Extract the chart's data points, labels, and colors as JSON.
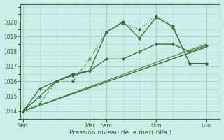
{
  "bg_color": "#cceee8",
  "grid_color": "#aad4cc",
  "line_color_main": "#2d6e2d",
  "xlabel": "Pression niveau de la mer( hPa )",
  "ylim": [
    1013.5,
    1021.2
  ],
  "yticks": [
    1014,
    1015,
    1016,
    1017,
    1018,
    1019,
    1020
  ],
  "xtick_labels": [
    "Ven",
    "Mar",
    "Sam",
    "Dim",
    "Lun"
  ],
  "xtick_positions": [
    0,
    12,
    15,
    24,
    33
  ],
  "xlim": [
    -0.5,
    35.5
  ],
  "vline_positions": [
    0,
    12,
    15,
    24,
    33
  ],
  "vline_color": "#3a6e3a",
  "series": [
    {
      "x": [
        0,
        3,
        6,
        9,
        12,
        15,
        18,
        21,
        24,
        27,
        30,
        33
      ],
      "y": [
        1014.0,
        1014.5,
        1016.0,
        1016.0,
        1017.5,
        1019.3,
        1019.9,
        1019.5,
        1020.4,
        1019.6,
        1017.2,
        1017.2
      ],
      "marker": "D",
      "markersize": 2.0,
      "linewidth": 0.9,
      "linestyle": ":",
      "color": "#2d6e2d"
    },
    {
      "x": [
        0,
        3,
        6,
        9,
        12,
        15,
        18,
        21,
        24,
        27,
        30,
        33
      ],
      "y": [
        1014.0,
        1015.0,
        1016.0,
        1016.4,
        1016.7,
        1019.3,
        1020.0,
        1018.9,
        1020.3,
        1019.7,
        1017.2,
        1017.2
      ],
      "marker": "*",
      "markersize": 3.5,
      "linewidth": 0.9,
      "linestyle": "-",
      "color": "#2d6e2d"
    },
    {
      "x": [
        0,
        3,
        6,
        9,
        12,
        15,
        18,
        21,
        24,
        27,
        30,
        33
      ],
      "y": [
        1014.0,
        1015.5,
        1016.0,
        1016.5,
        1016.7,
        1017.5,
        1017.5,
        1018.0,
        1018.5,
        1018.5,
        1018.0,
        1018.4
      ],
      "marker": "D",
      "markersize": 2.0,
      "linewidth": 0.9,
      "linestyle": "-",
      "color": "#2d6e2d"
    },
    {
      "x": [
        0,
        33
      ],
      "y": [
        1014.0,
        1018.3
      ],
      "marker": null,
      "markersize": 0,
      "linewidth": 1.0,
      "linestyle": "-",
      "color": "#2d6e2d"
    },
    {
      "x": [
        0,
        33
      ],
      "y": [
        1014.0,
        1018.5
      ],
      "marker": null,
      "markersize": 0,
      "linewidth": 0.8,
      "linestyle": "-",
      "color": "#4a8a4a"
    }
  ]
}
